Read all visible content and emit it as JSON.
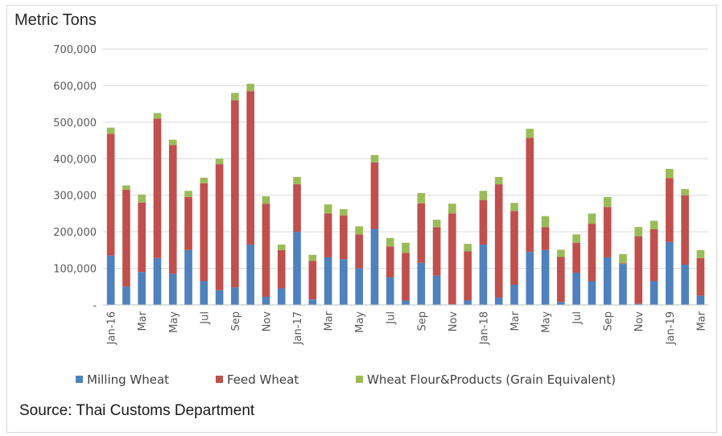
{
  "chart_data": {
    "type": "bar",
    "stacked": true,
    "ylabel": "Metric Tons",
    "source": "Source: Thai Customs Department",
    "ylim": [
      0,
      700000
    ],
    "ytick_step": 100000,
    "grid": true,
    "legend_position": "bottom",
    "categories": [
      "Jan-16",
      "Feb-16",
      "Mar-16",
      "Apr-16",
      "May-16",
      "Jun-16",
      "Jul-16",
      "Aug-16",
      "Sep-16",
      "Oct-16",
      "Nov-16",
      "Dec-16",
      "Jan-17",
      "Feb-17",
      "Mar-17",
      "Apr-17",
      "May-17",
      "Jun-17",
      "Jul-17",
      "Aug-17",
      "Sep-17",
      "Oct-17",
      "Nov-17",
      "Dec-17",
      "Jan-18",
      "Feb-18",
      "Mar-18",
      "Apr-18",
      "May-18",
      "Jun-18",
      "Jul-18",
      "Aug-18",
      "Sep-18",
      "Oct-18",
      "Nov-18",
      "Dec-18",
      "Jan-19",
      "Feb-19",
      "Mar-19"
    ],
    "tick_labels": [
      "Jan-16",
      "",
      "Mar",
      "",
      "May",
      "",
      "Jul",
      "",
      "Sep",
      "",
      "Nov",
      "",
      "Jan-17",
      "",
      "Mar",
      "",
      "May",
      "",
      "Jul",
      "",
      "Sep",
      "",
      "Nov",
      "",
      "Jan-18",
      "",
      "Mar",
      "",
      "May",
      "",
      "Jul",
      "",
      "Sep",
      "",
      "Nov",
      "",
      "Jan-19",
      "",
      "Mar"
    ],
    "series": [
      {
        "name": "Milling Wheat",
        "color": "#4f81bd",
        "values": [
          135000,
          50000,
          90000,
          128000,
          85000,
          150000,
          65000,
          40000,
          48000,
          165000,
          22000,
          45000,
          200000,
          15000,
          130000,
          125000,
          100000,
          208000,
          75000,
          12000,
          115000,
          80000,
          2000,
          12000,
          165000,
          20000,
          55000,
          145000,
          150000,
          8000,
          88000,
          65000,
          130000,
          112000,
          3000,
          65000,
          172000,
          110000,
          25000
        ]
      },
      {
        "name": "Feed Wheat",
        "color": "#c0504d",
        "values": [
          333000,
          265000,
          190000,
          382000,
          352000,
          145000,
          268000,
          345000,
          512000,
          420000,
          255000,
          105000,
          130000,
          105000,
          120000,
          120000,
          93000,
          182000,
          85000,
          130000,
          163000,
          133000,
          248000,
          135000,
          122000,
          310000,
          202000,
          312000,
          63000,
          123000,
          82000,
          157000,
          138000,
          2000,
          185000,
          142000,
          175000,
          190000,
          103000
        ]
      },
      {
        "name": "Wheat Flour&Products (Grain Equivalent)",
        "color": "#9bbb59",
        "values": [
          17000,
          12000,
          22000,
          15000,
          15000,
          17000,
          15000,
          15000,
          20000,
          20000,
          20000,
          15000,
          20000,
          17000,
          25000,
          17000,
          22000,
          20000,
          23000,
          28000,
          28000,
          20000,
          27000,
          20000,
          25000,
          20000,
          22000,
          25000,
          30000,
          20000,
          23000,
          28000,
          27000,
          25000,
          25000,
          23000,
          25000,
          17000,
          22000
        ]
      }
    ]
  }
}
